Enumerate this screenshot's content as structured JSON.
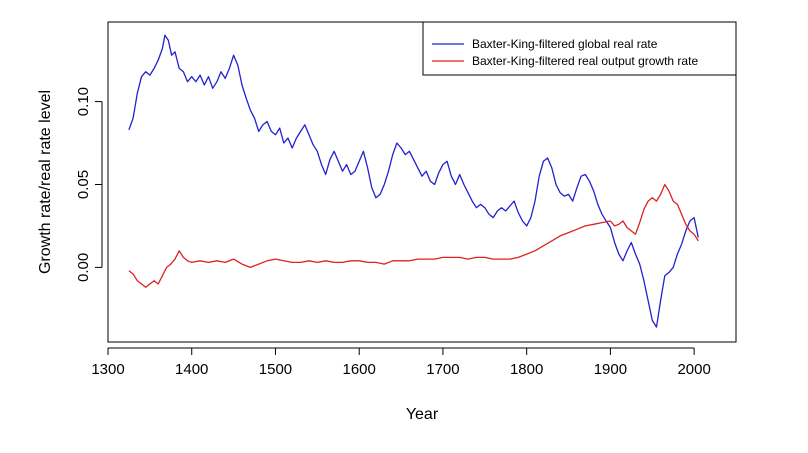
{
  "chart_data": {
    "type": "line",
    "title": "",
    "xlabel": "Year",
    "ylabel": "Growth rate/real rate level",
    "xlim": [
      1300,
      2050
    ],
    "ylim": [
      -0.045,
      0.148
    ],
    "xticks": [
      1300,
      1400,
      1500,
      1600,
      1700,
      1800,
      1900,
      2000
    ],
    "yticks": [
      0.0,
      0.05,
      0.1
    ],
    "ytick_labels": [
      "0.00",
      "0.05",
      "0.10"
    ],
    "grid": false,
    "legend_position": "top-right",
    "series": [
      {
        "name": "Baxter-King-filtered global real rate",
        "color": "#2222cc",
        "x": [
          1325,
          1330,
          1335,
          1340,
          1345,
          1350,
          1355,
          1360,
          1365,
          1368,
          1372,
          1376,
          1380,
          1385,
          1390,
          1395,
          1400,
          1405,
          1410,
          1415,
          1420,
          1425,
          1430,
          1435,
          1440,
          1445,
          1450,
          1455,
          1460,
          1465,
          1470,
          1475,
          1480,
          1485,
          1490,
          1495,
          1500,
          1505,
          1510,
          1515,
          1520,
          1525,
          1530,
          1535,
          1540,
          1545,
          1550,
          1555,
          1560,
          1565,
          1570,
          1575,
          1580,
          1585,
          1590,
          1595,
          1600,
          1605,
          1610,
          1615,
          1620,
          1625,
          1630,
          1635,
          1640,
          1645,
          1650,
          1655,
          1660,
          1665,
          1670,
          1675,
          1680,
          1685,
          1690,
          1695,
          1700,
          1705,
          1710,
          1715,
          1720,
          1725,
          1730,
          1735,
          1740,
          1745,
          1750,
          1755,
          1760,
          1765,
          1770,
          1775,
          1780,
          1785,
          1790,
          1795,
          1800,
          1805,
          1810,
          1815,
          1820,
          1825,
          1830,
          1835,
          1840,
          1845,
          1850,
          1855,
          1860,
          1865,
          1870,
          1875,
          1880,
          1885,
          1890,
          1895,
          1900,
          1905,
          1910,
          1915,
          1920,
          1925,
          1930,
          1935,
          1940,
          1945,
          1950,
          1955,
          1960,
          1965,
          1970,
          1975,
          1980,
          1985,
          1990,
          1995,
          2000,
          2005
        ],
        "y": [
          0.083,
          0.09,
          0.105,
          0.115,
          0.118,
          0.116,
          0.12,
          0.125,
          0.132,
          0.14,
          0.137,
          0.128,
          0.13,
          0.12,
          0.118,
          0.112,
          0.115,
          0.112,
          0.116,
          0.11,
          0.115,
          0.108,
          0.112,
          0.118,
          0.114,
          0.12,
          0.128,
          0.122,
          0.11,
          0.102,
          0.095,
          0.09,
          0.082,
          0.086,
          0.088,
          0.082,
          0.08,
          0.084,
          0.075,
          0.078,
          0.072,
          0.078,
          0.082,
          0.086,
          0.08,
          0.074,
          0.07,
          0.062,
          0.056,
          0.065,
          0.07,
          0.064,
          0.058,
          0.062,
          0.056,
          0.058,
          0.064,
          0.07,
          0.06,
          0.048,
          0.042,
          0.044,
          0.05,
          0.058,
          0.068,
          0.075,
          0.072,
          0.068,
          0.07,
          0.065,
          0.06,
          0.055,
          0.058,
          0.052,
          0.05,
          0.057,
          0.062,
          0.064,
          0.055,
          0.05,
          0.056,
          0.05,
          0.045,
          0.04,
          0.036,
          0.038,
          0.036,
          0.032,
          0.03,
          0.034,
          0.036,
          0.034,
          0.037,
          0.04,
          0.033,
          0.028,
          0.025,
          0.03,
          0.04,
          0.055,
          0.064,
          0.066,
          0.06,
          0.05,
          0.045,
          0.043,
          0.044,
          0.04,
          0.048,
          0.055,
          0.056,
          0.052,
          0.046,
          0.038,
          0.032,
          0.028,
          0.024,
          0.015,
          0.008,
          0.004,
          0.01,
          0.015,
          0.008,
          0.002,
          -0.008,
          -0.02,
          -0.032,
          -0.036,
          -0.02,
          -0.005,
          -0.003,
          0.0,
          0.008,
          0.014,
          0.022,
          0.028,
          0.03,
          0.018
        ]
      },
      {
        "name": "Baxter-King-filtered real output growth rate",
        "color": "#dd2222",
        "x": [
          1325,
          1330,
          1335,
          1340,
          1345,
          1350,
          1355,
          1360,
          1365,
          1370,
          1375,
          1380,
          1385,
          1390,
          1395,
          1400,
          1410,
          1420,
          1430,
          1440,
          1450,
          1460,
          1470,
          1480,
          1490,
          1500,
          1510,
          1520,
          1530,
          1540,
          1550,
          1560,
          1570,
          1580,
          1590,
          1600,
          1610,
          1620,
          1630,
          1640,
          1650,
          1660,
          1670,
          1680,
          1690,
          1700,
          1710,
          1720,
          1730,
          1740,
          1750,
          1760,
          1770,
          1780,
          1790,
          1800,
          1810,
          1820,
          1830,
          1840,
          1850,
          1860,
          1870,
          1880,
          1890,
          1900,
          1905,
          1910,
          1915,
          1920,
          1925,
          1930,
          1935,
          1940,
          1945,
          1950,
          1955,
          1960,
          1965,
          1970,
          1975,
          1980,
          1985,
          1990,
          1995,
          2000,
          2005
        ],
        "y": [
          -0.002,
          -0.004,
          -0.008,
          -0.01,
          -0.012,
          -0.01,
          -0.008,
          -0.01,
          -0.005,
          0.0,
          0.002,
          0.005,
          0.01,
          0.006,
          0.004,
          0.003,
          0.004,
          0.003,
          0.004,
          0.003,
          0.005,
          0.002,
          0.0,
          0.002,
          0.004,
          0.005,
          0.004,
          0.003,
          0.003,
          0.004,
          0.003,
          0.004,
          0.003,
          0.003,
          0.004,
          0.004,
          0.003,
          0.003,
          0.002,
          0.004,
          0.004,
          0.004,
          0.005,
          0.005,
          0.005,
          0.006,
          0.006,
          0.006,
          0.005,
          0.006,
          0.006,
          0.005,
          0.005,
          0.005,
          0.006,
          0.008,
          0.01,
          0.013,
          0.016,
          0.019,
          0.021,
          0.023,
          0.025,
          0.026,
          0.027,
          0.028,
          0.025,
          0.026,
          0.028,
          0.024,
          0.022,
          0.02,
          0.027,
          0.035,
          0.04,
          0.042,
          0.04,
          0.044,
          0.05,
          0.046,
          0.04,
          0.038,
          0.032,
          0.026,
          0.022,
          0.02,
          0.016
        ]
      }
    ]
  }
}
